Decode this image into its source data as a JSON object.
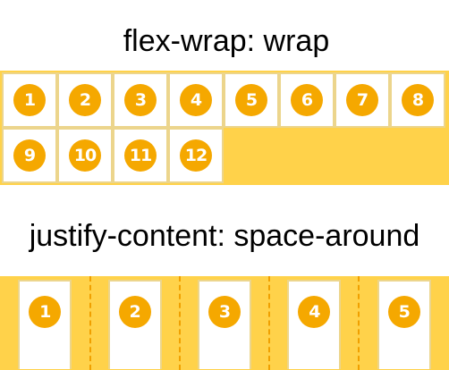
{
  "titles": {
    "wrap": "flex-wrap: wrap",
    "justify": "justify-content: space-around"
  },
  "wrap_items": [
    "1",
    "2",
    "3",
    "4",
    "5",
    "6",
    "7",
    "8",
    "9",
    "10",
    "11",
    "12"
  ],
  "around_items": [
    "1",
    "2",
    "3",
    "4",
    "5"
  ],
  "colors": {
    "container_bg": "#ffd24a",
    "badge": "#f5a800",
    "item_border": "#ecd58c",
    "divider": "#f0a000"
  }
}
